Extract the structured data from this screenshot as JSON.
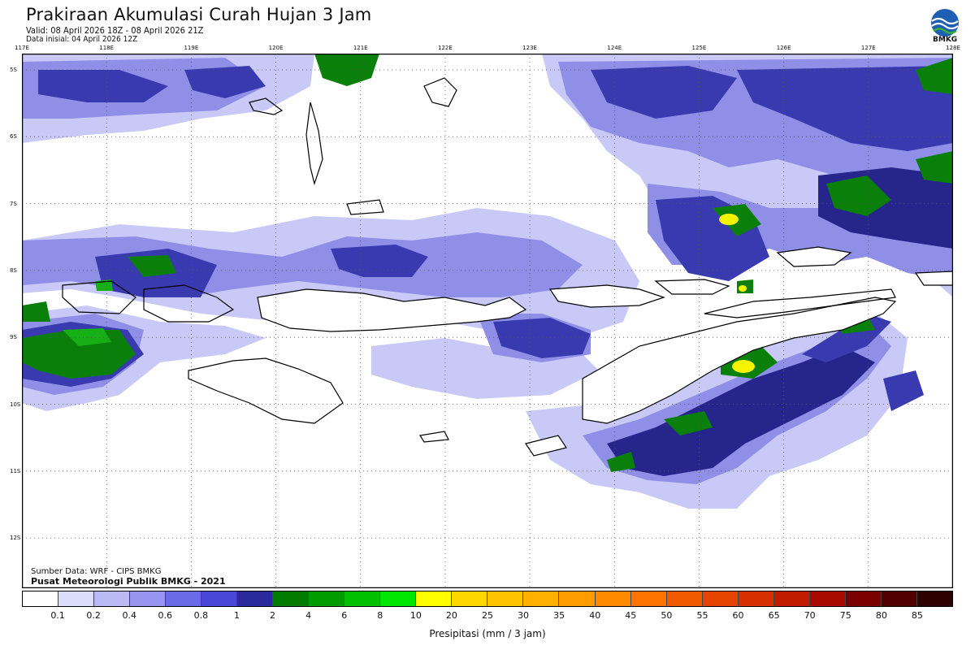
{
  "header": {
    "title": "Prakiraan Akumulasi Curah Hujan 3 Jam",
    "valid": "Valid: 08 April 2026 18Z - 08 April 2026 21Z",
    "init": "Data inisial: 04 April 2026 12Z",
    "logo_label": "BMKG"
  },
  "axes": {
    "lon_labels": [
      "117E",
      "118E",
      "119E",
      "120E",
      "121E",
      "122E",
      "123E",
      "124E",
      "125E",
      "126E",
      "127E",
      "128E"
    ],
    "lat_labels": [
      "5S",
      "6S",
      "7S",
      "8S",
      "9S",
      "10S",
      "11S",
      "12S"
    ]
  },
  "credits": {
    "source": "Sumber Data: WRF - CIPS BMKG",
    "org": "Pusat Meteorologi Publik BMKG - 2021"
  },
  "legend": {
    "caption": "Presipitasi (mm / 3 jam)",
    "ticks": [
      "0.1",
      "0.2",
      "0.4",
      "0.6",
      "0.8",
      "1",
      "2",
      "4",
      "6",
      "8",
      "10",
      "20",
      "25",
      "30",
      "35",
      "40",
      "45",
      "50",
      "55",
      "60",
      "65",
      "70",
      "75",
      "80",
      "85"
    ],
    "colors": [
      "#ffffff",
      "#dcdcfb",
      "#b9b9f6",
      "#9696f0",
      "#6a6ae6",
      "#4848d6",
      "#2a2a9c",
      "#007a00",
      "#009c00",
      "#00c000",
      "#00e600",
      "#ffff00",
      "#ffd700",
      "#ffc400",
      "#ffb000",
      "#ff9c00",
      "#ff8a00",
      "#ff7400",
      "#f25a00",
      "#e44400",
      "#d63000",
      "#c21c00",
      "#a80a00",
      "#7a0000",
      "#500000",
      "#2e0000"
    ]
  },
  "map_colors": {
    "light": "#c9c9f7",
    "mid": "#8f8fe8",
    "dark": "#3a3ab0",
    "navy": "#25258c",
    "green": "#0a7f0a",
    "bright_green": "#16b016",
    "yellow": "#f4f400"
  }
}
